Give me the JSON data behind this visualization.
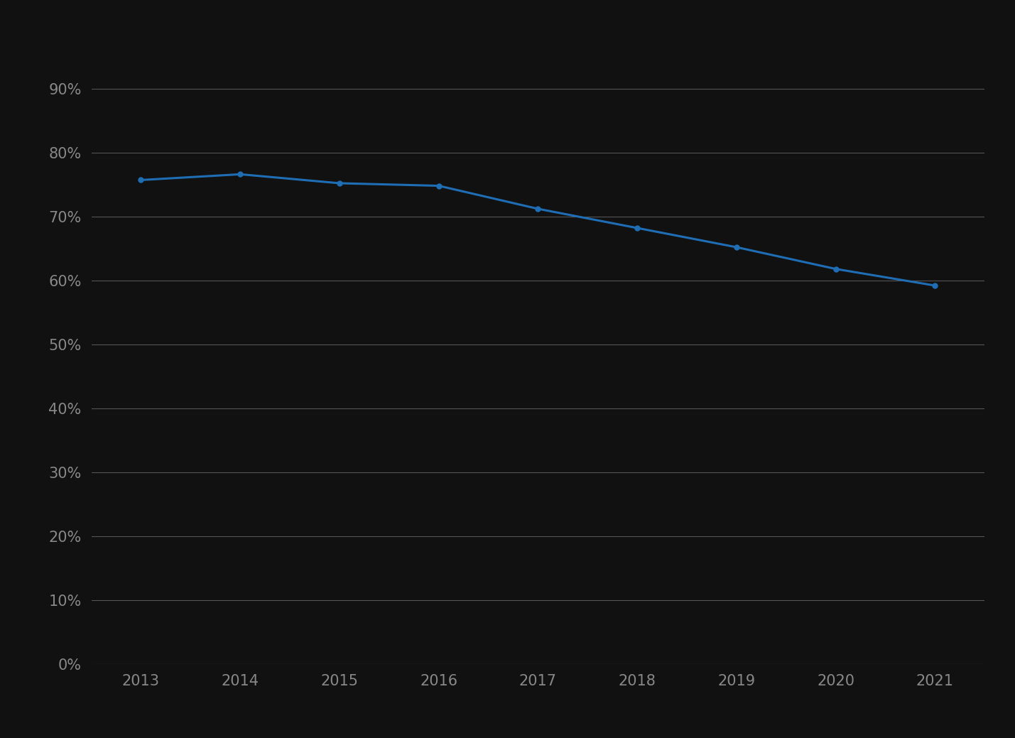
{
  "years": [
    2013,
    2014,
    2015,
    2016,
    2017,
    2018,
    2019,
    2020,
    2021
  ],
  "values": [
    0.757,
    0.766,
    0.752,
    0.748,
    0.712,
    0.682,
    0.652,
    0.618,
    0.592
  ],
  "line_color": "#1f6eb5",
  "marker": "o",
  "marker_size": 5,
  "line_width": 2.2,
  "background_color": "#111111",
  "grid_color": "#555555",
  "tick_label_color": "#888888",
  "ylim": [
    0,
    0.9
  ],
  "yticks": [
    0.0,
    0.1,
    0.2,
    0.3,
    0.4,
    0.5,
    0.6,
    0.7,
    0.8,
    0.9
  ],
  "ytick_labels": [
    "0%",
    "10%",
    "20%",
    "30%",
    "40%",
    "50%",
    "60%",
    "70%",
    "80%",
    "90%"
  ],
  "xlim": [
    2012.5,
    2021.5
  ],
  "tick_label_fontsize": 15
}
